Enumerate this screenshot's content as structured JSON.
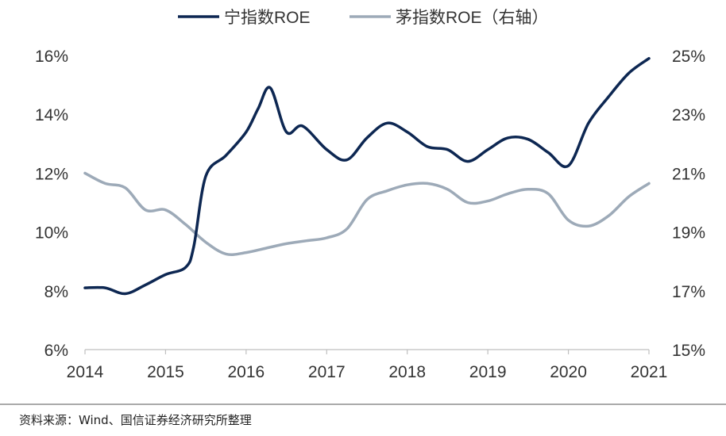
{
  "chart_data": {
    "type": "line",
    "title": "",
    "x_ticks": [
      "2014",
      "2015",
      "2016",
      "2017",
      "2018",
      "2019",
      "2020",
      "2021"
    ],
    "xlim": [
      2014,
      2021
    ],
    "y_left": {
      "lim": [
        6,
        16
      ],
      "ticks": [
        6,
        8,
        10,
        12,
        14,
        16
      ],
      "tick_labels": [
        "6%",
        "8%",
        "10%",
        "12%",
        "14%",
        "16%"
      ]
    },
    "y_right": {
      "lim": [
        15,
        25
      ],
      "ticks": [
        15,
        17,
        19,
        21,
        23,
        25
      ],
      "tick_labels": [
        "15%",
        "17%",
        "19%",
        "21%",
        "23%",
        "25%"
      ]
    },
    "series": [
      {
        "name": "宁指数ROE",
        "axis": "left",
        "color": "#0d2752",
        "x": [
          2014.0,
          2014.25,
          2014.5,
          2014.75,
          2015.0,
          2015.25,
          2015.35,
          2015.5,
          2015.75,
          2016.0,
          2016.15,
          2016.3,
          2016.5,
          2016.7,
          2017.0,
          2017.25,
          2017.5,
          2017.75,
          2018.0,
          2018.25,
          2018.5,
          2018.75,
          2019.0,
          2019.25,
          2019.5,
          2019.75,
          2020.0,
          2020.25,
          2020.5,
          2020.75,
          2021.0
        ],
        "values": [
          8.1,
          8.1,
          7.9,
          8.2,
          8.55,
          8.8,
          9.5,
          11.9,
          12.6,
          13.4,
          14.2,
          14.9,
          13.4,
          13.6,
          12.8,
          12.45,
          13.2,
          13.7,
          13.4,
          12.9,
          12.8,
          12.4,
          12.8,
          13.2,
          13.15,
          12.7,
          12.25,
          13.7,
          14.6,
          15.4,
          15.9
        ]
      },
      {
        "name": "茅指数ROE（右轴）",
        "axis": "right",
        "color": "#9daab8",
        "x": [
          2014.0,
          2014.25,
          2014.5,
          2014.75,
          2015.0,
          2015.25,
          2015.5,
          2015.75,
          2016.0,
          2016.25,
          2016.5,
          2016.75,
          2017.0,
          2017.25,
          2017.5,
          2017.75,
          2018.0,
          2018.25,
          2018.5,
          2018.75,
          2019.0,
          2019.25,
          2019.5,
          2019.75,
          2020.0,
          2020.25,
          2020.5,
          2020.75,
          2021.0
        ],
        "values": [
          21.0,
          20.65,
          20.5,
          19.75,
          19.75,
          19.25,
          18.65,
          18.25,
          18.3,
          18.45,
          18.6,
          18.7,
          18.8,
          19.1,
          20.1,
          20.4,
          20.6,
          20.65,
          20.45,
          20.0,
          20.05,
          20.3,
          20.45,
          20.3,
          19.4,
          19.2,
          19.55,
          20.2,
          20.65
        ]
      }
    ]
  },
  "legend": {
    "items": [
      {
        "label": "宁指数ROE",
        "color": "#0d2752"
      },
      {
        "label": "茅指数ROE（右轴）",
        "color": "#9daab8"
      }
    ]
  },
  "source_note": "资料来源：Wind、国信证券经济研究所整理"
}
